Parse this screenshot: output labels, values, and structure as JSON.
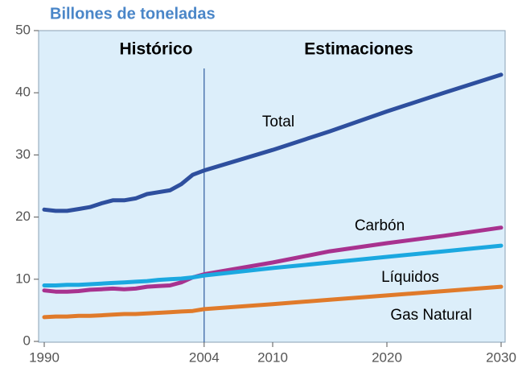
{
  "chart_data": {
    "type": "line",
    "ylabel": "Billones de toneladas",
    "annotations": [
      "Histórico",
      "Estimaciones"
    ],
    "divider": 2004,
    "x": [
      1990,
      1991,
      1992,
      1993,
      1994,
      1995,
      1996,
      1997,
      1998,
      1999,
      2000,
      2001,
      2002,
      2003,
      2004,
      2010,
      2015,
      2020,
      2025,
      2030
    ],
    "series": [
      {
        "name": "Total",
        "color": "#2e4f9e",
        "values": [
          21.2,
          21,
          21,
          21.3,
          21.6,
          22.2,
          22.7,
          22.7,
          23,
          23.7,
          24,
          24.3,
          25.3,
          26.8,
          27.5,
          30.8,
          33.8,
          37,
          40,
          42.9
        ]
      },
      {
        "name": "Carbón",
        "color": "#a8328f",
        "values": [
          8.2,
          8,
          8,
          8.1,
          8.3,
          8.4,
          8.5,
          8.4,
          8.5,
          8.8,
          8.9,
          9,
          9.5,
          10.3,
          10.8,
          12.7,
          14.5,
          15.8,
          17,
          18.3
        ]
      },
      {
        "name": "Líquidos",
        "color": "#1ba8e0",
        "values": [
          9,
          9,
          9.1,
          9.1,
          9.2,
          9.3,
          9.4,
          9.5,
          9.6,
          9.7,
          9.9,
          10,
          10.1,
          10.3,
          10.6,
          11.8,
          12.7,
          13.6,
          14.5,
          15.4
        ]
      },
      {
        "name": "Gas Natural",
        "color": "#e07a2a",
        "values": [
          3.9,
          4,
          4,
          4.1,
          4.1,
          4.2,
          4.3,
          4.4,
          4.4,
          4.5,
          4.6,
          4.7,
          4.8,
          4.9,
          5.2,
          6,
          6.7,
          7.4,
          8.1,
          8.8
        ]
      }
    ],
    "xlim": [
      1990,
      2030
    ],
    "xticks": [
      1990,
      2004,
      2010,
      2020,
      2030
    ],
    "ylim": [
      0,
      50
    ],
    "yticks": [
      0,
      10,
      20,
      30,
      40,
      50
    ],
    "grid": false
  }
}
